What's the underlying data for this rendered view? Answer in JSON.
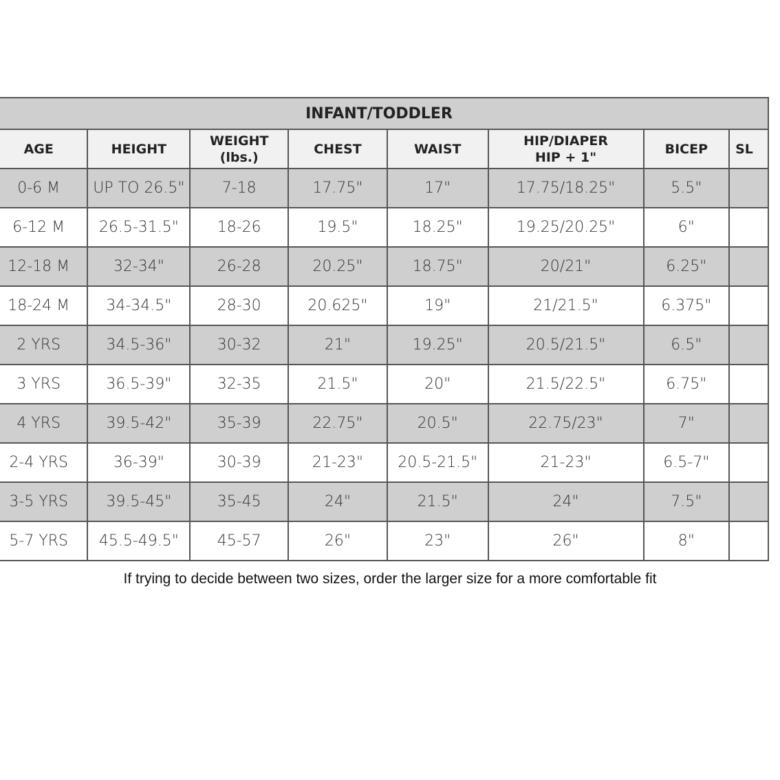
{
  "title": "INFANT/TODDLER",
  "columns": [
    "AGE",
    "HEIGHT",
    "WEIGHT (lbs.)",
    "CHEST",
    "WAIST",
    "HIP/DIAPER\nHIP + 1\"",
    "BICEP",
    "SL"
  ],
  "rows": [
    [
      "0-6 M",
      "UP TO 26.5\"",
      "7-18",
      "17.75\"",
      "17\"",
      "17.75/18.25\"",
      "5.5\"",
      ""
    ],
    [
      "6-12 M",
      "26.5-31.5\"",
      "18-26",
      "19.5\"",
      "18.25\"",
      "19.25/20.25\"",
      "6\"",
      ""
    ],
    [
      "12-18 M",
      "32-34\"",
      "26-28",
      "20.25\"",
      "18.75\"",
      "20/21\"",
      "6.25\"",
      ""
    ],
    [
      "18-24 M",
      "34-34.5\"",
      "28-30",
      "20.625\"",
      "19\"",
      "21/21.5\"",
      "6.375\"",
      ""
    ],
    [
      "2 YRS",
      "34.5-36\"",
      "30-32",
      "21\"",
      "19.25\"",
      "20.5/21.5\"",
      "6.5\"",
      ""
    ],
    [
      "3 YRS",
      "36.5-39\"",
      "32-35",
      "21.5\"",
      "20\"",
      "21.5/22.5\"",
      "6.75\"",
      ""
    ],
    [
      "4 YRS",
      "39.5-42\"",
      "35-39",
      "22.75\"",
      "20.5\"",
      "22.75/23\"",
      "7\"",
      ""
    ],
    [
      "2-4 YRS",
      "36-39\"",
      "30-39",
      "21-23\"",
      "20.5-21.5\"",
      "21-23\"",
      "6.5-7\"",
      ""
    ],
    [
      "3-5 YRS",
      "39.5-45\"",
      "35-45",
      "24\"",
      "21.5\"",
      "24\"",
      "7.5\"",
      ""
    ],
    [
      "5-7 YRS",
      "45.5-49.5\"",
      "45-57",
      "26\"",
      "23\"",
      "26\"",
      "8\"",
      ""
    ]
  ],
  "note": "If trying to decide between two sizes, order the larger size for a more comfortable fit",
  "colors": {
    "shaded_row": "#d0cfd0",
    "header_row": "#f1f1f1",
    "border": "#555555"
  }
}
